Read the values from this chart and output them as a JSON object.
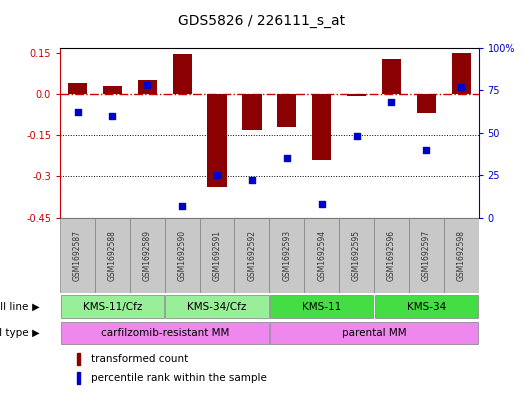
{
  "title": "GDS5826 / 226111_s_at",
  "samples": [
    "GSM1692587",
    "GSM1692588",
    "GSM1692589",
    "GSM1692590",
    "GSM1692591",
    "GSM1692592",
    "GSM1692593",
    "GSM1692594",
    "GSM1692595",
    "GSM1692596",
    "GSM1692597",
    "GSM1692598"
  ],
  "transformed_count": [
    0.04,
    0.03,
    0.05,
    0.148,
    -0.34,
    -0.13,
    -0.12,
    -0.24,
    -0.005,
    0.13,
    -0.07,
    0.15
  ],
  "percentile_rank": [
    62,
    60,
    78,
    7,
    25,
    22,
    35,
    8,
    48,
    68,
    40,
    77
  ],
  "ylim_left": [
    -0.45,
    0.17
  ],
  "ylim_right": [
    0,
    100
  ],
  "yticks_left": [
    -0.45,
    -0.3,
    -0.15,
    0.0,
    0.15
  ],
  "yticks_right": [
    0,
    25,
    50,
    75,
    100
  ],
  "bar_color": "#8B0000",
  "dot_color": "#0000CC",
  "hline_color": "#CC0000",
  "grid_color": "#000000",
  "cell_line_groups": [
    {
      "label": "KMS-11/Cfz",
      "start": 0,
      "end": 3,
      "color": "#99EE99"
    },
    {
      "label": "KMS-34/Cfz",
      "start": 3,
      "end": 6,
      "color": "#99EE99"
    },
    {
      "label": "KMS-11",
      "start": 6,
      "end": 9,
      "color": "#44DD44"
    },
    {
      "label": "KMS-34",
      "start": 9,
      "end": 12,
      "color": "#44DD44"
    }
  ],
  "cell_type_groups": [
    {
      "label": "carfilzomib-resistant MM",
      "start": 0,
      "end": 6,
      "color": "#EE88EE"
    },
    {
      "label": "parental MM",
      "start": 6,
      "end": 12,
      "color": "#EE88EE"
    }
  ],
  "legend_items": [
    {
      "label": "transformed count",
      "color": "#8B0000"
    },
    {
      "label": "percentile rank within the sample",
      "color": "#0000CC"
    }
  ],
  "label_row_color": "#C8C8C8",
  "label_text_color": "#333333"
}
